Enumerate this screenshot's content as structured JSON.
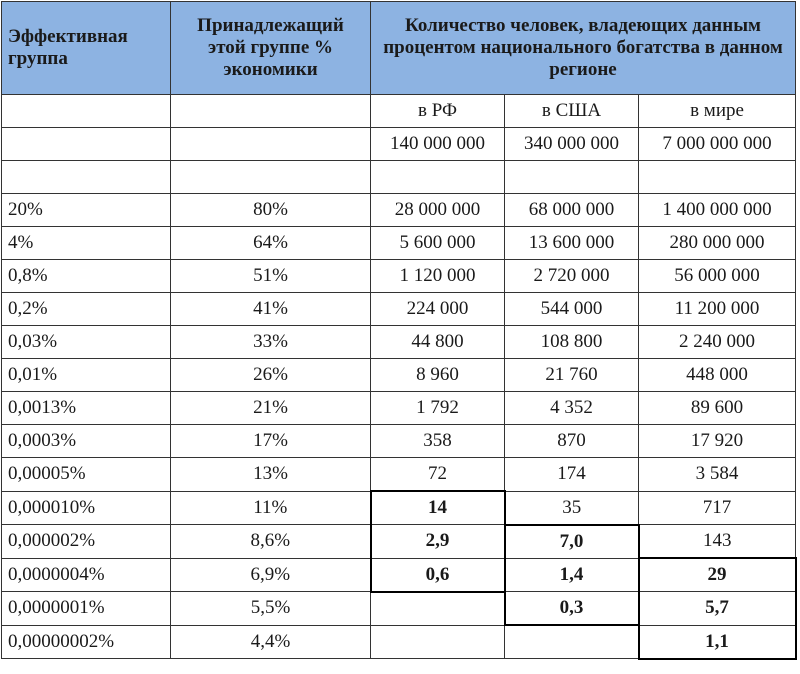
{
  "header": {
    "columns": [
      "Эффективная группа",
      "Принадлежащий этой группе % экономики",
      "Количество человек, владеющих данным процентом национального богатства в данном регионе"
    ],
    "regions": [
      "в РФ",
      "в США",
      "в мире"
    ],
    "populations": [
      "140 000 000",
      "340 000 000",
      "7 000 000 000"
    ]
  },
  "table": {
    "rows": [
      [
        "20%",
        "80%",
        "28 000 000",
        "68 000 000",
        "1 400 000 000"
      ],
      [
        "4%",
        "64%",
        "5 600 000",
        "13 600 000",
        "280 000 000"
      ],
      [
        "0,8%",
        "51%",
        "1 120 000",
        "2 720 000",
        "56 000 000"
      ],
      [
        "0,2%",
        "41%",
        "224 000",
        "544 000",
        "11 200 000"
      ],
      [
        "0,03%",
        "33%",
        "44 800",
        "108 800",
        "2 240 000"
      ],
      [
        "0,01%",
        "26%",
        "8 960",
        "21 760",
        "448 000"
      ],
      [
        "0,0013%",
        "21%",
        "1 792",
        "4 352",
        "89 600"
      ],
      [
        "0,0003%",
        "17%",
        "358",
        "870",
        "17 920"
      ],
      [
        "0,00005%",
        "13%",
        "72",
        "174",
        "3 584"
      ],
      [
        "0,000010%",
        "11%",
        "14",
        "35",
        "717"
      ],
      [
        "0,000002%",
        "8,6%",
        "2,9",
        "7,0",
        "143"
      ],
      [
        "0,0000004%",
        "6,9%",
        "0,6",
        "1,4",
        "29"
      ],
      [
        "0,0000001%",
        "5,5%",
        null,
        "0,3",
        "5,7"
      ],
      [
        "0,00000002%",
        "4,4%",
        null,
        null,
        "1,1"
      ]
    ]
  }
}
